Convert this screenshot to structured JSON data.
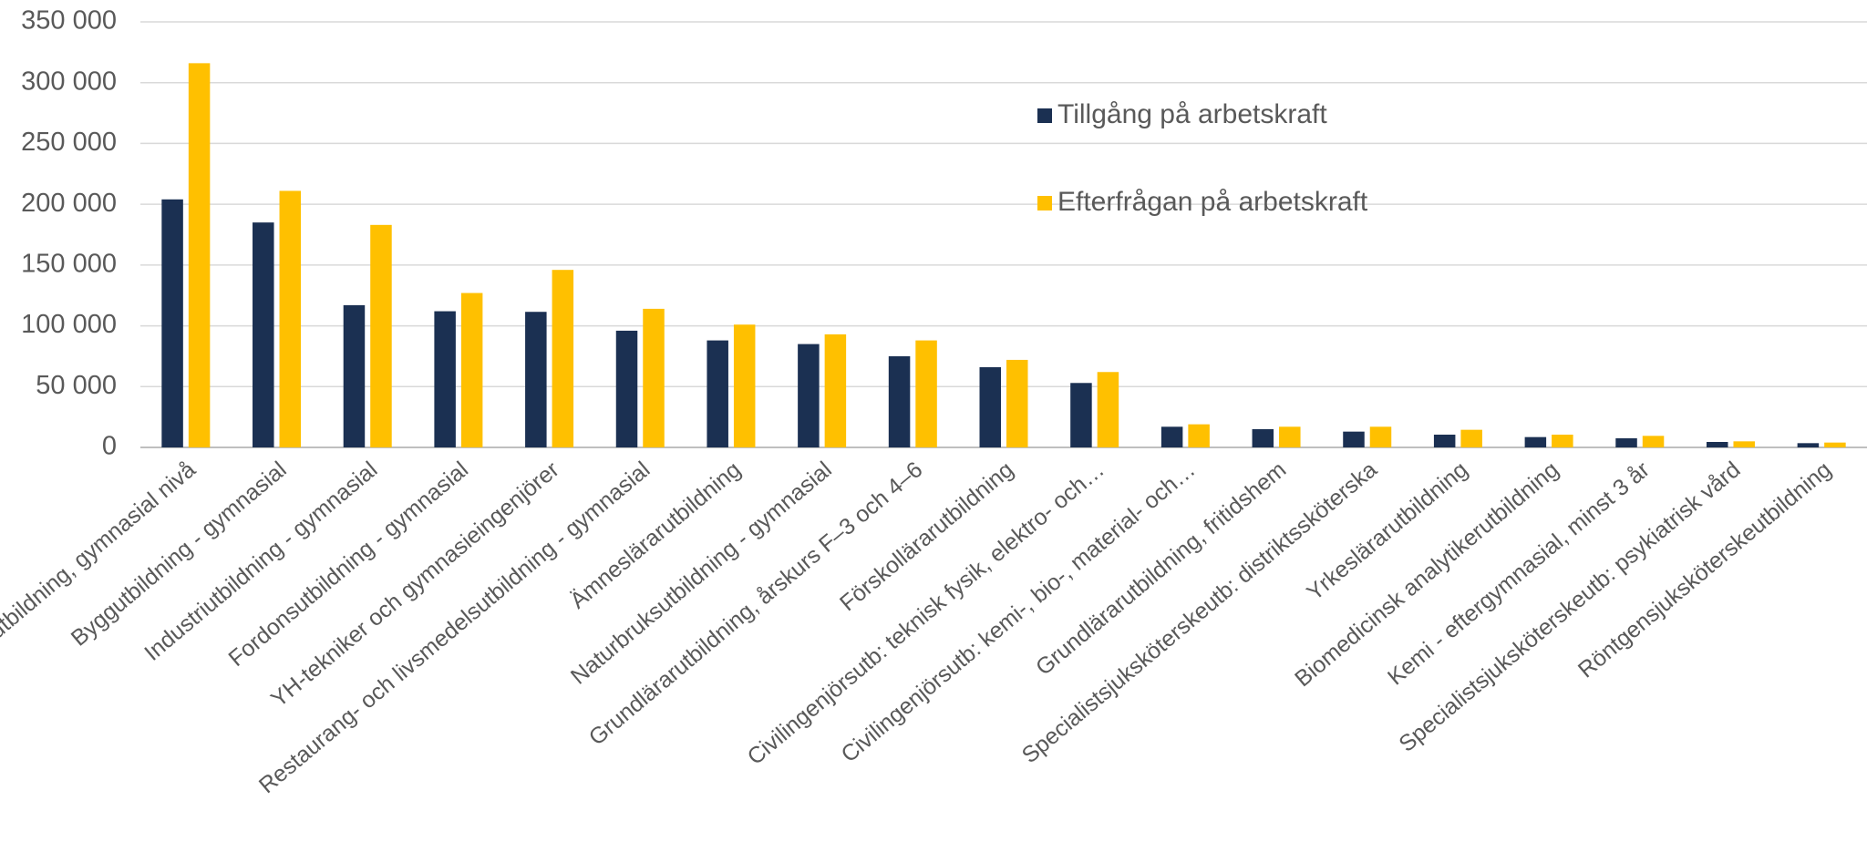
{
  "chart_data": {
    "type": "bar",
    "categories": [
      "Vård- och omsorgsutbildning, gymnasial nivå",
      "Byggutbildning - gymnasial",
      "Industriutbildning - gymnasial",
      "Fordonsutbildning - gymnasial",
      "YH-tekniker och gymnasieingenjörer",
      "Restaurang- och livsmedelsutbildning - gymnasial",
      "Ämneslärarutbildning",
      "Naturbruksutbildning - gymnasial",
      "Grundlärarutbildning, årskurs F–3 och 4–6",
      "Förskollärarutbildning",
      "Civilingenjörsutb: teknisk fysik, elektro- och…",
      "Civilingenjörsutb: kemi-, bio-, material- och…",
      "Grundlärarutbildning, fritidshem",
      "Specialistsjuksköterskeutb: distriktssköterska",
      "Yrkeslärarutbildning",
      "Biomedicinsk analytikerutbildning",
      "Kemi - eftergymnasial, minst 3 år",
      "Specialistsjuksköterskeutb: psykiatrisk vård",
      "Röntgensjuksköterskeutbildning"
    ],
    "series": [
      {
        "name": "Tillgång på arbetskraft",
        "color": "#1b3052",
        "values": [
          204000,
          185000,
          117000,
          112000,
          111500,
          96000,
          88000,
          85000,
          75000,
          66000,
          53000,
          17000,
          15000,
          13000,
          10500,
          8500,
          7500,
          4500,
          3500
        ]
      },
      {
        "name": "Efterfrågan på arbetskraft",
        "color": "#ffc000",
        "values": [
          316000,
          211000,
          183000,
          127000,
          146000,
          114000,
          101000,
          93000,
          88000,
          72000,
          62000,
          19000,
          17000,
          17000,
          14500,
          10500,
          9500,
          5000,
          4000
        ]
      }
    ],
    "ylim": [
      0,
      350000
    ],
    "yticks": [
      0,
      {
        "value": 50000,
        "label": "50 000"
      },
      {
        "value": 100000,
        "label": "100 000"
      },
      {
        "value": 150000,
        "label": "150 000"
      },
      {
        "value": 200000,
        "label": "200 000"
      },
      {
        "value": 250000,
        "label": "250 000"
      },
      {
        "value": 300000,
        "label": "300 000"
      },
      {
        "value": 350000,
        "label": "350 000"
      }
    ],
    "grid": true,
    "legend": "top-right"
  }
}
